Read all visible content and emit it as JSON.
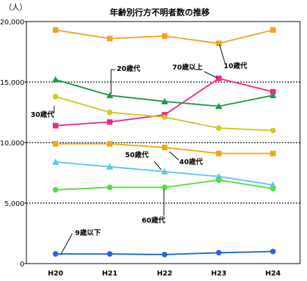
{
  "chart_data": {
    "type": "line",
    "title": "年齢別行方不明者数の推移",
    "ylabel": "（人）",
    "xlabel": "",
    "categories": [
      "H20",
      "H21",
      "H22",
      "H23",
      "H24"
    ],
    "ylim": [
      0,
      20000
    ],
    "yticks": [
      0,
      5000,
      10000,
      15000,
      20000
    ],
    "ytick_labels": [
      "0",
      "5,000",
      "10,000",
      "15,000",
      "20,000"
    ],
    "grid": "dotted horizontal at 5,000 / 10,000 / 15,000",
    "series": [
      {
        "name": "10歳代",
        "color": "#f5a02a",
        "marker": "square",
        "values": [
          19300,
          18600,
          18800,
          18200,
          19300
        ]
      },
      {
        "name": "70歳以上",
        "color": "#ee2a8a",
        "marker": "square",
        "values": [
          11400,
          11700,
          12300,
          15300,
          14200
        ]
      },
      {
        "name": "20歳代",
        "color": "#1f9a48",
        "marker": "triangle",
        "values": [
          15200,
          13900,
          13400,
          13000,
          13900
        ]
      },
      {
        "name": "30歳代",
        "color": "#cccc22",
        "marker": "circle",
        "values": [
          13800,
          12500,
          12100,
          11200,
          11000
        ]
      },
      {
        "name": "40歳代",
        "color": "#f0a818",
        "marker": "square",
        "values": [
          9900,
          9900,
          9600,
          9100,
          9100
        ]
      },
      {
        "name": "50歳代",
        "color": "#5cc8f0",
        "marker": "triangle",
        "values": [
          8400,
          8000,
          7600,
          7200,
          6500
        ]
      },
      {
        "name": "60歳代",
        "color": "#55dd44",
        "marker": "circle",
        "values": [
          6100,
          6300,
          6300,
          6900,
          6200
        ]
      },
      {
        "name": "9歳以下",
        "color": "#2266dd",
        "marker": "circle",
        "values": [
          800,
          800,
          750,
          900,
          1000
        ]
      }
    ]
  }
}
